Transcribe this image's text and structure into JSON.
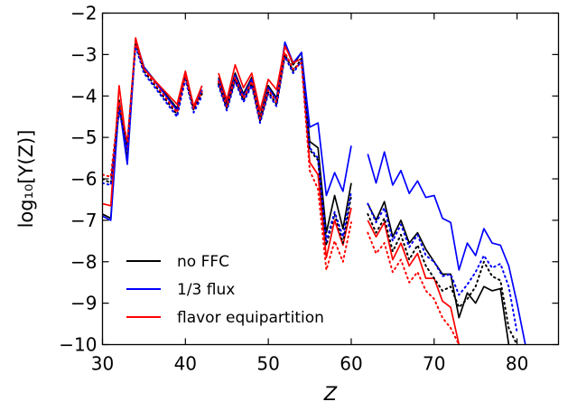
{
  "chart_data": {
    "type": "line",
    "xlabel": "Z",
    "ylabel": "log₁₀[Y(Z)]",
    "xlim": [
      30,
      85
    ],
    "ylim": [
      -10,
      -2
    ],
    "xticks": [
      30,
      40,
      50,
      60,
      70,
      80
    ],
    "yticks": [
      -10,
      -9,
      -8,
      -7,
      -6,
      -5,
      -4,
      -3,
      -2
    ],
    "xtick_labels": [
      "30",
      "40",
      "50",
      "60",
      "70",
      "80"
    ],
    "ytick_labels": [
      "−10",
      "−9",
      "−8",
      "−7",
      "−6",
      "−5",
      "−4",
      "−3",
      "−2"
    ],
    "grid": false,
    "legend_position": "lower-left",
    "series": [
      {
        "name": "no FFC",
        "color": "#000000",
        "style": "solid",
        "segments": [
          [
            [
              30,
              -6.85
            ],
            [
              31,
              -6.95
            ],
            [
              32,
              -4.1
            ],
            [
              33,
              -5.55
            ],
            [
              34,
              -2.65
            ],
            [
              35,
              -3.3
            ],
            [
              39,
              -4.3
            ],
            [
              40,
              -3.45
            ],
            [
              41,
              -4.25
            ],
            [
              42,
              -3.85
            ]
          ],
          [
            [
              44,
              -3.55
            ],
            [
              45,
              -4.2
            ],
            [
              46,
              -3.45
            ],
            [
              47,
              -3.95
            ],
            [
              48,
              -3.55
            ],
            [
              49,
              -4.5
            ],
            [
              50,
              -3.75
            ],
            [
              51,
              -4.05
            ],
            [
              52,
              -2.75
            ],
            [
              53,
              -3.25
            ],
            [
              54,
              -2.95
            ],
            [
              55,
              -5.1
            ],
            [
              56,
              -5.25
            ],
            [
              57,
              -7.3
            ],
            [
              58,
              -6.4
            ],
            [
              59,
              -7.2
            ],
            [
              60,
              -6.1
            ]
          ],
          [
            [
              62,
              -6.6
            ],
            [
              63,
              -7.0
            ],
            [
              64,
              -6.55
            ],
            [
              65,
              -7.4
            ],
            [
              66,
              -7.0
            ],
            [
              67,
              -7.55
            ],
            [
              68,
              -7.3
            ],
            [
              69,
              -7.7
            ],
            [
              70,
              -8.0
            ],
            [
              71,
              -8.3
            ],
            [
              72,
              -8.3
            ],
            [
              73,
              -9.35
            ],
            [
              74,
              -8.75
            ],
            [
              75,
              -9.0
            ],
            [
              76,
              -8.6
            ],
            [
              77,
              -8.7
            ],
            [
              78,
              -8.65
            ],
            [
              79,
              -10.0
            ]
          ]
        ]
      },
      {
        "name": "1/3 flux",
        "color": "#0000ff",
        "style": "solid",
        "segments": [
          [
            [
              30,
              -6.9
            ],
            [
              31,
              -7.0
            ],
            [
              32,
              -4.2
            ],
            [
              33,
              -5.65
            ],
            [
              34,
              -2.65
            ],
            [
              35,
              -3.3
            ],
            [
              39,
              -4.35
            ],
            [
              40,
              -3.45
            ],
            [
              41,
              -4.3
            ],
            [
              42,
              -3.85
            ]
          ],
          [
            [
              44,
              -3.6
            ],
            [
              45,
              -4.25
            ],
            [
              46,
              -3.5
            ],
            [
              47,
              -4.0
            ],
            [
              48,
              -3.6
            ],
            [
              49,
              -4.55
            ],
            [
              50,
              -3.8
            ],
            [
              51,
              -4.1
            ],
            [
              52,
              -2.7
            ],
            [
              53,
              -3.2
            ],
            [
              54,
              -2.95
            ],
            [
              55,
              -4.75
            ],
            [
              56,
              -4.65
            ],
            [
              57,
              -6.4
            ],
            [
              58,
              -5.85
            ],
            [
              59,
              -6.3
            ],
            [
              60,
              -5.2
            ]
          ],
          [
            [
              62,
              -5.4
            ],
            [
              63,
              -6.1
            ],
            [
              64,
              -5.35
            ],
            [
              65,
              -6.15
            ],
            [
              66,
              -5.8
            ],
            [
              67,
              -6.35
            ],
            [
              68,
              -6.05
            ],
            [
              69,
              -6.45
            ],
            [
              70,
              -6.4
            ],
            [
              71,
              -6.95
            ],
            [
              72,
              -7.05
            ],
            [
              73,
              -8.2
            ],
            [
              74,
              -7.55
            ],
            [
              75,
              -7.85
            ],
            [
              76,
              -7.2
            ],
            [
              77,
              -7.55
            ],
            [
              78,
              -7.6
            ],
            [
              79,
              -8.1
            ],
            [
              80,
              -9.0
            ],
            [
              81,
              -10.0
            ]
          ]
        ]
      },
      {
        "name": "flavor equipartition",
        "color": "#ff0000",
        "style": "solid",
        "segments": [
          [
            [
              30,
              -6.6
            ],
            [
              31,
              -6.65
            ],
            [
              32,
              -3.75
            ],
            [
              33,
              -5.3
            ],
            [
              34,
              -2.6
            ],
            [
              35,
              -3.35
            ],
            [
              39,
              -4.2
            ],
            [
              40,
              -3.4
            ],
            [
              41,
              -4.25
            ],
            [
              42,
              -3.75
            ]
          ],
          [
            [
              44,
              -3.45
            ],
            [
              45,
              -4.1
            ],
            [
              46,
              -3.25
            ],
            [
              47,
              -3.8
            ],
            [
              48,
              -3.45
            ],
            [
              49,
              -4.35
            ],
            [
              50,
              -3.6
            ],
            [
              51,
              -3.85
            ],
            [
              52,
              -2.8
            ],
            [
              53,
              -3.2
            ],
            [
              54,
              -3.1
            ],
            [
              55,
              -5.6
            ],
            [
              56,
              -5.9
            ],
            [
              57,
              -7.9
            ],
            [
              58,
              -7.0
            ],
            [
              59,
              -7.6
            ],
            [
              60,
              -6.7
            ]
          ],
          [
            [
              62,
              -7.0
            ],
            [
              63,
              -7.4
            ],
            [
              64,
              -7.05
            ],
            [
              65,
              -7.95
            ],
            [
              66,
              -7.55
            ],
            [
              67,
              -8.1
            ],
            [
              68,
              -7.8
            ],
            [
              69,
              -8.4
            ],
            [
              70,
              -8.4
            ],
            [
              71,
              -8.95
            ],
            [
              72,
              -9.1
            ],
            [
              73,
              -10.0
            ]
          ]
        ]
      },
      {
        "name": "",
        "color": "#000000",
        "style": "dotted",
        "segments": [
          [
            [
              30,
              -6.0
            ],
            [
              31,
              -6.1
            ],
            [
              32,
              -4.3
            ],
            [
              33,
              -5.2
            ],
            [
              34,
              -2.75
            ],
            [
              35,
              -3.4
            ],
            [
              39,
              -4.45
            ],
            [
              40,
              -3.55
            ],
            [
              41,
              -4.35
            ],
            [
              42,
              -3.95
            ]
          ],
          [
            [
              44,
              -3.7
            ],
            [
              45,
              -4.3
            ],
            [
              46,
              -3.6
            ],
            [
              47,
              -4.1
            ],
            [
              48,
              -3.7
            ],
            [
              49,
              -4.6
            ],
            [
              50,
              -3.9
            ],
            [
              51,
              -4.2
            ],
            [
              52,
              -3.0
            ],
            [
              53,
              -3.4
            ],
            [
              54,
              -3.1
            ],
            [
              55,
              -5.3
            ],
            [
              56,
              -5.55
            ],
            [
              57,
              -7.6
            ],
            [
              58,
              -6.85
            ],
            [
              59,
              -7.55
            ],
            [
              60,
              -6.4
            ]
          ],
          [
            [
              62,
              -6.85
            ],
            [
              63,
              -7.3
            ],
            [
              64,
              -6.95
            ],
            [
              65,
              -7.75
            ],
            [
              66,
              -7.35
            ],
            [
              67,
              -7.95
            ],
            [
              68,
              -7.6
            ],
            [
              69,
              -8.1
            ],
            [
              70,
              -8.4
            ],
            [
              71,
              -8.7
            ],
            [
              72,
              -8.6
            ],
            [
              73,
              -9.1
            ],
            [
              74,
              -8.9
            ],
            [
              75,
              -8.6
            ],
            [
              76,
              -8.0
            ],
            [
              77,
              -8.35
            ],
            [
              78,
              -8.45
            ],
            [
              79,
              -9.6
            ],
            [
              80,
              -10.0
            ]
          ]
        ]
      },
      {
        "name": "",
        "color": "#0000ff",
        "style": "dotted",
        "segments": [
          [
            [
              30,
              -6.1
            ],
            [
              31,
              -6.15
            ],
            [
              32,
              -4.35
            ],
            [
              33,
              -5.3
            ],
            [
              34,
              -2.8
            ],
            [
              35,
              -3.45
            ],
            [
              39,
              -4.5
            ],
            [
              40,
              -3.6
            ],
            [
              41,
              -4.4
            ],
            [
              42,
              -4.0
            ]
          ],
          [
            [
              44,
              -3.75
            ],
            [
              45,
              -4.35
            ],
            [
              46,
              -3.65
            ],
            [
              47,
              -4.15
            ],
            [
              48,
              -3.75
            ],
            [
              49,
              -4.65
            ],
            [
              50,
              -3.95
            ],
            [
              51,
              -4.25
            ],
            [
              52,
              -3.05
            ],
            [
              53,
              -3.45
            ],
            [
              54,
              -3.15
            ],
            [
              55,
              -5.25
            ],
            [
              56,
              -5.5
            ],
            [
              57,
              -7.5
            ],
            [
              58,
              -6.8
            ],
            [
              59,
              -7.4
            ],
            [
              60,
              -6.3
            ]
          ],
          [
            [
              62,
              -6.6
            ],
            [
              63,
              -7.05
            ],
            [
              64,
              -6.7
            ],
            [
              65,
              -7.5
            ],
            [
              66,
              -7.1
            ],
            [
              67,
              -7.65
            ],
            [
              68,
              -7.35
            ],
            [
              69,
              -7.85
            ],
            [
              70,
              -8.0
            ],
            [
              71,
              -8.35
            ],
            [
              72,
              -8.3
            ],
            [
              73,
              -8.8
            ],
            [
              74,
              -8.55
            ],
            [
              75,
              -8.25
            ],
            [
              76,
              -7.85
            ],
            [
              77,
              -8.15
            ],
            [
              78,
              -8.05
            ],
            [
              79,
              -8.6
            ],
            [
              80,
              -9.7
            ]
          ]
        ]
      },
      {
        "name": "",
        "color": "#ff0000",
        "style": "dotted",
        "segments": [
          [
            [
              30,
              -5.9
            ],
            [
              31,
              -5.95
            ],
            [
              32,
              -4.15
            ],
            [
              33,
              -5.1
            ],
            [
              34,
              -2.7
            ],
            [
              35,
              -3.35
            ],
            [
              39,
              -4.4
            ],
            [
              40,
              -3.5
            ],
            [
              41,
              -4.3
            ],
            [
              42,
              -3.9
            ]
          ],
          [
            [
              44,
              -3.65
            ],
            [
              45,
              -4.25
            ],
            [
              46,
              -3.55
            ],
            [
              47,
              -4.05
            ],
            [
              48,
              -3.65
            ],
            [
              49,
              -4.55
            ],
            [
              50,
              -3.85
            ],
            [
              51,
              -4.15
            ],
            [
              52,
              -2.95
            ],
            [
              53,
              -3.35
            ],
            [
              54,
              -3.2
            ],
            [
              55,
              -5.8
            ],
            [
              56,
              -6.25
            ],
            [
              57,
              -8.2
            ],
            [
              58,
              -7.5
            ],
            [
              59,
              -8.0
            ],
            [
              60,
              -7.05
            ]
          ],
          [
            [
              62,
              -7.3
            ],
            [
              63,
              -7.8
            ],
            [
              64,
              -7.55
            ],
            [
              65,
              -8.25
            ],
            [
              66,
              -7.95
            ],
            [
              67,
              -8.5
            ],
            [
              68,
              -8.25
            ],
            [
              69,
              -8.7
            ],
            [
              70,
              -8.9
            ],
            [
              71,
              -9.35
            ],
            [
              72,
              -9.6
            ],
            [
              73,
              -10.0
            ]
          ]
        ]
      }
    ]
  }
}
